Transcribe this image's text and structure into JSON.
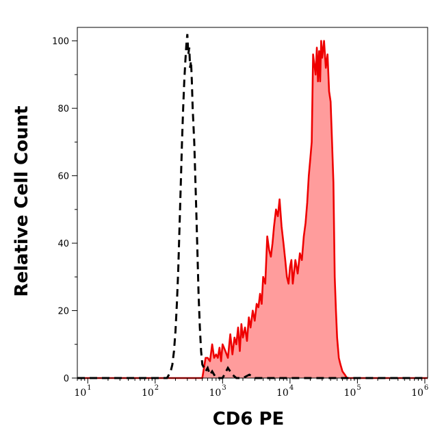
{
  "chart_data": {
    "type": "area",
    "title": "",
    "xlabel": "CD6 PE",
    "ylabel": "Relative Cell Count",
    "x_scale": "log",
    "xlim": [
      7,
      1100000
    ],
    "ylim": [
      0,
      104
    ],
    "grid": false,
    "x_ticks": [
      {
        "base": "10",
        "exp": "1",
        "value": 10
      },
      {
        "base": "10",
        "exp": "2",
        "value": 100
      },
      {
        "base": "10",
        "exp": "3",
        "value": 1000
      },
      {
        "base": "10",
        "exp": "4",
        "value": 10000
      },
      {
        "base": "10",
        "exp": "5",
        "value": 100000
      },
      {
        "base": "10",
        "exp": "6",
        "value": 1000000
      }
    ],
    "y_ticks": [
      {
        "label": "0",
        "value": 0
      },
      {
        "label": "20",
        "value": 20
      },
      {
        "label": "40",
        "value": 40
      },
      {
        "label": "60",
        "value": 60
      },
      {
        "label": "80",
        "value": 80
      },
      {
        "label": "100",
        "value": 100
      }
    ],
    "series": [
      {
        "style": "filled-red",
        "color": "#ee0000",
        "fill": "#ff9c9c",
        "x": [
          7,
          500,
          560,
          600,
          650,
          700,
          750,
          800,
          850,
          900,
          950,
          1000,
          1100,
          1200,
          1300,
          1400,
          1500,
          1600,
          1700,
          1800,
          1900,
          2000,
          2150,
          2300,
          2450,
          2600,
          2800,
          3000,
          3200,
          3400,
          3600,
          3800,
          4000,
          4300,
          4600,
          4900,
          5200,
          5500,
          5800,
          6200,
          6600,
          7000,
          7500,
          8000,
          8500,
          9000,
          9500,
          10000,
          10500,
          11000,
          12000,
          13000,
          14000,
          15000,
          16000,
          17000,
          18000,
          19000,
          20000,
          21000,
          22000,
          24000,
          25000,
          26000,
          27000,
          28000,
          29000,
          30000,
          32000,
          34000,
          36000,
          38000,
          40000,
          42000,
          44000,
          46000,
          48000,
          50000,
          53000,
          56000,
          60000,
          65000,
          70000,
          75000,
          80000,
          85000,
          90000,
          95000,
          100000,
          105000,
          110000,
          120000,
          130000,
          1100000
        ],
        "y": [
          0,
          0,
          6,
          6,
          5,
          10,
          6,
          7,
          6,
          9,
          5,
          10,
          8,
          6,
          13,
          7,
          12,
          10,
          15,
          8,
          16,
          12,
          15,
          11,
          18,
          15,
          20,
          17,
          22,
          21,
          25,
          22,
          30,
          28,
          42,
          38,
          36,
          40,
          45,
          50,
          48,
          53,
          45,
          40,
          35,
          30,
          28,
          33,
          35,
          28,
          35,
          31,
          37,
          35,
          42,
          46,
          52,
          60,
          65,
          70,
          96,
          90,
          98,
          88,
          97,
          88,
          100,
          95,
          100,
          92,
          96,
          85,
          82,
          70,
          58,
          30,
          20,
          12,
          6,
          4,
          2,
          1,
          0,
          0,
          0,
          0,
          0,
          0,
          0,
          0,
          0,
          0,
          0,
          0
        ]
      },
      {
        "style": "dashed-black",
        "color": "#000000",
        "x": [
          7,
          150,
          160,
          170,
          180,
          190,
          200,
          210,
          220,
          230,
          240,
          250,
          260,
          270,
          280,
          290,
          300,
          310,
          320,
          330,
          340,
          350,
          360,
          380,
          400,
          420,
          440,
          460,
          480,
          500,
          530,
          560,
          600,
          650,
          700,
          800,
          1000,
          1200,
          1400,
          1600,
          2000,
          2500,
          3000,
          1100000
        ],
        "y": [
          0,
          0,
          1,
          2,
          4,
          8,
          14,
          22,
          32,
          45,
          58,
          70,
          80,
          88,
          94,
          99,
          102,
          96,
          98,
          92,
          94,
          88,
          80,
          70,
          55,
          40,
          25,
          15,
          8,
          4,
          3,
          2,
          3,
          1,
          2,
          0,
          0,
          3,
          1,
          0,
          0,
          1,
          0,
          0
        ]
      }
    ]
  }
}
